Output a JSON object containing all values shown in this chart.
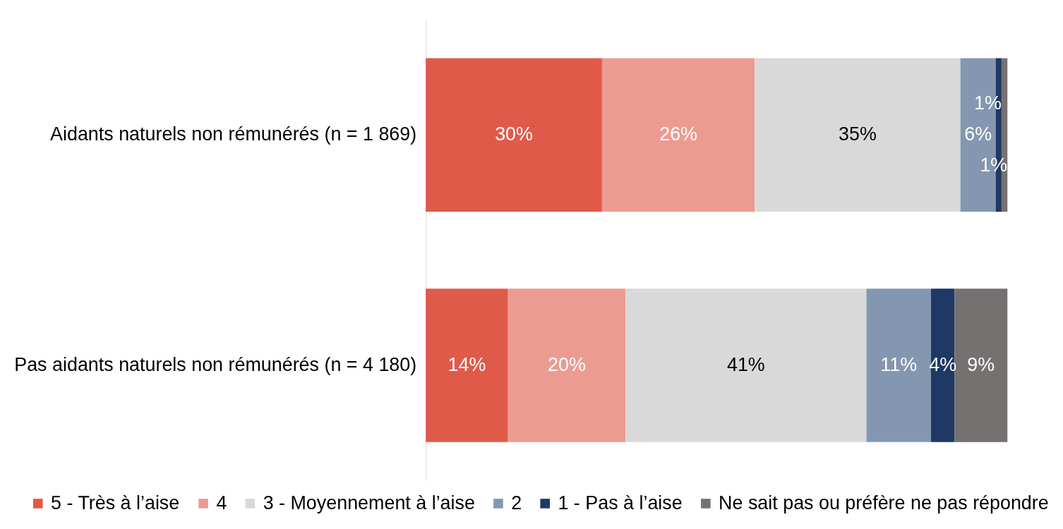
{
  "chart_data": {
    "type": "bar",
    "orientation": "horizontal",
    "stacked": true,
    "categories": [
      "Aidants naturels non rémunérés (n = 1 869)",
      "Pas aidants naturels non rémunérés (n = 4 180)"
    ],
    "series": [
      {
        "name": "5 - Très à l’aise",
        "color": "#e05a4a",
        "values": [
          30,
          14
        ],
        "value_labels": [
          "30%",
          "14%"
        ]
      },
      {
        "name": "4",
        "color": "#ec9b91",
        "values": [
          26,
          20
        ],
        "value_labels": [
          "26%",
          "20%"
        ]
      },
      {
        "name": "3 - Moyennement à l’aise",
        "color": "#d9d9d9",
        "values": [
          35,
          41
        ],
        "value_labels": [
          "35%",
          "41%"
        ]
      },
      {
        "name": "2",
        "color": "#8497b0",
        "values": [
          6,
          11
        ],
        "value_labels": [
          "6%",
          "11%"
        ]
      },
      {
        "name": "1 - Pas à l’aise",
        "color": "#1f3864",
        "values": [
          1,
          4
        ],
        "value_labels": [
          "1%",
          "4%"
        ]
      },
      {
        "name": "Ne sait pas ou préfère ne pas répondre",
        "color": "#767171",
        "values": [
          1,
          9
        ],
        "value_labels": [
          "1%",
          "9%"
        ]
      }
    ],
    "legend": "bottom",
    "tick_labels": "y"
  }
}
